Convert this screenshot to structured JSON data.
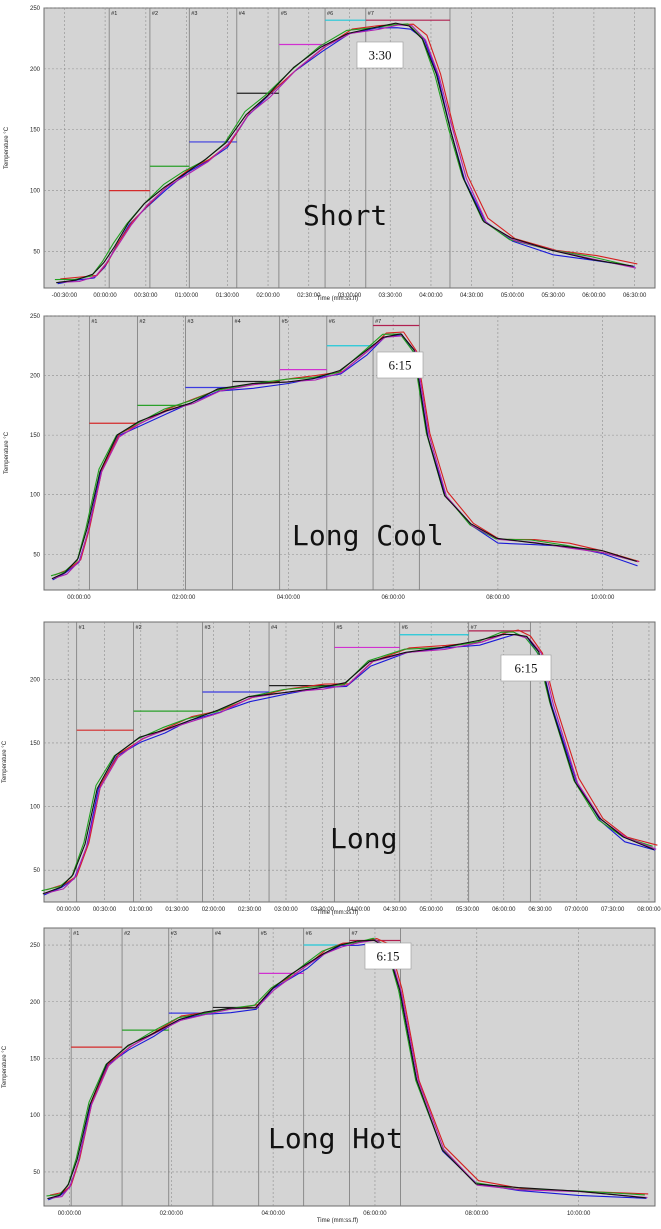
{
  "colors": {
    "plot_bg": "#d4d4d4",
    "grid": "#8e8e8e",
    "zone_line": "#7a7a7a",
    "setpoints": [
      "#d42a2a",
      "#2aa02a",
      "#3a3ae0",
      "#222222",
      "#d030d0",
      "#20c8d8",
      "#b02050"
    ],
    "series": [
      "#1a1ad8",
      "#d62020",
      "#20a020",
      "#b020b0",
      "#111111",
      "#8a8a10"
    ]
  },
  "chart_data": [
    {
      "type": "line",
      "profile_label": "Short",
      "peak_label": "3:30",
      "ylabel": "Temperature °C",
      "xlabel": "Time (mm:ss.ff)",
      "ylim": [
        20,
        250
      ],
      "yticks": [
        50,
        100,
        150,
        200,
        250
      ],
      "xlim_s": [
        -45,
        405
      ],
      "xticks_s": [
        -30,
        0,
        30,
        60,
        90,
        120,
        150,
        180,
        210,
        240,
        270,
        300,
        330,
        360,
        390
      ],
      "xtick_labels": [
        "-00:30:00",
        "00:00:00",
        "00:30:00",
        "01:00:00",
        "01:30:00",
        "02:00:00",
        "02:30:00",
        "03:00:00",
        "03:30:00",
        "04:00:00",
        "04:30:00",
        "05:00:00",
        "05:30:00",
        "06:00:00",
        "06:30:00"
      ],
      "zones": [
        "#1",
        "#2",
        "#3",
        "#4",
        "#5",
        "#6",
        "#7"
      ],
      "zone_bounds_s": [
        3,
        33,
        62,
        97,
        128,
        162,
        192,
        254
      ],
      "setpoints": [
        100,
        120,
        140,
        180,
        220,
        240,
        240
      ],
      "x_s": [
        -35,
        -20,
        -8,
        0,
        8,
        18,
        30,
        45,
        60,
        75,
        90,
        105,
        120,
        140,
        160,
        180,
        200,
        215,
        225,
        235,
        245,
        255,
        265,
        280,
        300,
        330,
        360,
        390
      ],
      "y": [
        25,
        27,
        30,
        40,
        55,
        73,
        88,
        103,
        115,
        125,
        138,
        163,
        178,
        200,
        217,
        230,
        234,
        236,
        235,
        225,
        195,
        150,
        110,
        75,
        60,
        50,
        44,
        38
      ]
    },
    {
      "type": "line",
      "profile_label": "Long Cool",
      "peak_label": "6:15",
      "ylabel": "Temperature °C",
      "xlabel": "",
      "ylim": [
        20,
        250
      ],
      "yticks": [
        50,
        100,
        150,
        200,
        250
      ],
      "xlim_s": [
        -40,
        660
      ],
      "xticks_s": [
        0,
        120,
        240,
        360,
        480,
        600
      ],
      "xtick_labels": [
        "00:00:00",
        "02:00:00",
        "04:00:00",
        "06:00:00",
        "08:00:00",
        "10:00:00"
      ],
      "zones": [
        "#1",
        "#2",
        "#3",
        "#4",
        "#5",
        "#6",
        "#7"
      ],
      "zone_bounds_s": [
        12,
        67,
        122,
        176,
        230,
        284,
        337,
        390
      ],
      "setpoints": [
        160,
        175,
        190,
        195,
        205,
        225,
        242
      ],
      "x_s": [
        -30,
        -15,
        0,
        10,
        25,
        45,
        70,
        100,
        130,
        160,
        200,
        240,
        270,
        300,
        330,
        350,
        370,
        385,
        400,
        420,
        450,
        480,
        520,
        560,
        600,
        640
      ],
      "y": [
        30,
        35,
        45,
        70,
        120,
        150,
        160,
        170,
        178,
        188,
        192,
        195,
        198,
        203,
        220,
        233,
        235,
        220,
        150,
        100,
        75,
        62,
        60,
        57,
        52,
        43
      ]
    },
    {
      "type": "line",
      "profile_label": "Long",
      "peak_label": "6:15",
      "ylabel": "Temperature °C",
      "xlabel": "Time (mm:ss.ff)",
      "ylim": [
        25,
        245
      ],
      "yticks": [
        50,
        100,
        150,
        200
      ],
      "xlim_s": [
        -20,
        485
      ],
      "xticks_s": [
        0,
        30,
        60,
        90,
        120,
        150,
        180,
        210,
        240,
        270,
        300,
        330,
        360,
        390,
        420,
        450,
        480
      ],
      "xtick_labels": [
        "00:00:00",
        "00:30:00",
        "01:00:00",
        "01:30:00",
        "02:00:00",
        "02:30:00",
        "03:00:00",
        "03:30:00",
        "04:00:00",
        "04:30:00",
        "05:00:00",
        "05:30:00",
        "06:00:00",
        "06:30:00",
        "07:00:00",
        "07:30:00",
        "08:00:00"
      ],
      "zones": [
        "#1",
        "#2",
        "#3",
        "#4",
        "#5",
        "#6",
        "#7"
      ],
      "zone_bounds_s": [
        7,
        54,
        111,
        166,
        220,
        274,
        331,
        382
      ],
      "setpoints": [
        160,
        175,
        190,
        195,
        225,
        235,
        238
      ],
      "x_s": [
        -20,
        -5,
        5,
        15,
        25,
        40,
        60,
        80,
        100,
        125,
        150,
        180,
        210,
        230,
        250,
        280,
        310,
        340,
        360,
        370,
        380,
        390,
        400,
        420,
        440,
        460,
        485
      ],
      "y": [
        32,
        37,
        45,
        70,
        115,
        140,
        153,
        160,
        168,
        175,
        185,
        190,
        194,
        196,
        213,
        222,
        225,
        229,
        235,
        236,
        233,
        220,
        180,
        120,
        90,
        75,
        67
      ]
    },
    {
      "type": "line",
      "profile_label": "Long Hot",
      "peak_label": "6:15",
      "ylabel": "Temperature °C",
      "xlabel": "Time (mm:ss.ff)",
      "ylim": [
        20,
        265
      ],
      "yticks": [
        50,
        100,
        150,
        200,
        250
      ],
      "xlim_s": [
        -30,
        690
      ],
      "xticks_s": [
        0,
        120,
        240,
        360,
        480,
        600
      ],
      "xtick_labels": [
        "00:00:00",
        "02:00:00",
        "04:00:00",
        "06:00:00",
        "08:00:00",
        "10:00:00"
      ],
      "zones": [
        "#1",
        "#2",
        "#3",
        "#4",
        "#5",
        "#6",
        "#7"
      ],
      "zone_bounds_s": [
        2,
        62,
        117,
        169,
        223,
        276,
        330,
        390
      ],
      "setpoints": [
        160,
        175,
        190,
        195,
        225,
        250,
        254
      ],
      "x_s": [
        -25,
        -10,
        0,
        10,
        25,
        45,
        70,
        100,
        130,
        160,
        190,
        220,
        240,
        260,
        280,
        300,
        320,
        340,
        360,
        375,
        390,
        410,
        440,
        480,
        530,
        600,
        680
      ],
      "y": [
        27,
        30,
        38,
        60,
        110,
        145,
        160,
        172,
        185,
        190,
        193,
        195,
        212,
        222,
        232,
        243,
        250,
        252,
        254,
        248,
        210,
        130,
        70,
        40,
        35,
        32,
        28
      ]
    }
  ]
}
